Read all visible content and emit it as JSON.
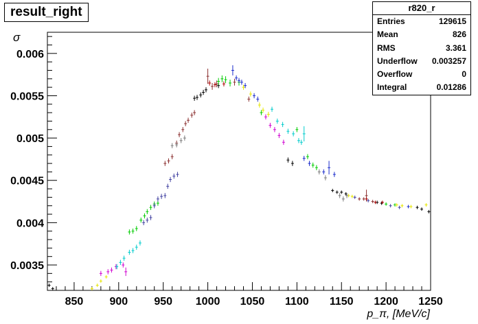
{
  "title": "result_right",
  "stats": {
    "name": "r820_r",
    "rows": [
      {
        "label": "Entries",
        "value": "129615"
      },
      {
        "label": "Mean",
        "value": "826"
      },
      {
        "label": "RMS",
        "value": "3.361"
      },
      {
        "label": "Underflow",
        "value": "0.003257"
      },
      {
        "label": "Overflow",
        "value": "0"
      },
      {
        "label": "Integral",
        "value": "0.01286"
      }
    ]
  },
  "chart_data": {
    "type": "scatter",
    "ylabel": "σ",
    "xlabel": "p_π, [MeV/c]",
    "xlim": [
      820,
      1250
    ],
    "ylim": [
      0.0032,
      0.00625
    ],
    "xticks": [
      "850",
      "900",
      "950",
      "1000",
      "1050",
      "1100",
      "1150",
      "1200",
      "1250"
    ],
    "yticks": [
      "0.0035",
      "0.004",
      "0.0045",
      "0.005",
      "0.0055",
      "0.006"
    ],
    "colors": {
      "black": "#000000",
      "brown": "#8b2f2f",
      "green": "#00cc00",
      "blue": "#1a2bcc",
      "yellow": "#e6e600",
      "magenta": "#d000d0",
      "cyan": "#00cccc",
      "gray": "#7a7a7a",
      "navy": "#4040a0",
      "red": "#aa0000"
    },
    "series": [
      {
        "color": "black",
        "points": [
          [
            822,
            0.00326
          ],
          [
            826,
            0.00322
          ],
          [
            985,
            0.00547
          ],
          [
            988,
            0.00548
          ],
          [
            992,
            0.00551
          ],
          [
            995,
            0.00554
          ],
          [
            998,
            0.00557
          ],
          [
            1012,
            0.00562
          ],
          [
            1090,
            0.00474
          ],
          [
            1095,
            0.0047
          ],
          [
            1140,
            0.00438
          ],
          [
            1145,
            0.00436
          ],
          [
            1150,
            0.00436
          ],
          [
            1155,
            0.00434
          ],
          [
            1190,
            0.00424
          ],
          [
            1195,
            0.00423
          ],
          [
            1235,
            0.00418
          ],
          [
            1240,
            0.00416
          ],
          [
            1248,
            0.00413
          ]
        ],
        "errs": [
          2e-05,
          2e-05,
          3e-05,
          3e-05,
          3e-05,
          3e-05,
          3e-05,
          3e-05,
          3e-05,
          3e-05,
          2e-05,
          2e-05,
          2e-05,
          2e-05,
          2e-05,
          2e-05,
          2e-05,
          2e-05,
          2e-05
        ]
      },
      {
        "color": "brown",
        "points": [
          [
            952,
            0.0047
          ],
          [
            956,
            0.00473
          ],
          [
            960,
            0.00478
          ],
          [
            965,
            0.00494
          ],
          [
            968,
            0.00504
          ],
          [
            972,
            0.0051
          ],
          [
            975,
            0.00517
          ],
          [
            978,
            0.00521
          ],
          [
            982,
            0.00527
          ],
          [
            985,
            0.0053
          ],
          [
            1000,
            0.00573
          ],
          [
            1005,
            0.00561
          ],
          [
            1010,
            0.00564
          ],
          [
            1030,
            0.00566
          ],
          [
            1046,
            0.00546
          ],
          [
            1170,
            0.00428
          ],
          [
            1175,
            0.00428
          ],
          [
            1178,
            0.00432
          ],
          [
            1185,
            0.00425
          ]
        ],
        "errs": [
          3e-05,
          3e-05,
          3e-05,
          3e-05,
          3e-05,
          3e-05,
          3e-05,
          3e-05,
          3e-05,
          3e-05,
          9e-05,
          4e-05,
          4e-05,
          4e-05,
          3e-05,
          2e-05,
          2e-05,
          7e-05,
          2e-05
        ]
      },
      {
        "color": "green",
        "points": [
          [
            912,
            0.00389
          ],
          [
            916,
            0.0039
          ],
          [
            920,
            0.00393
          ],
          [
            925,
            0.00403
          ],
          [
            929,
            0.00408
          ],
          [
            932,
            0.00413
          ],
          [
            936,
            0.00418
          ],
          [
            940,
            0.00422
          ],
          [
            944,
            0.00423
          ],
          [
            1012,
            0.00567
          ],
          [
            1016,
            0.0057
          ],
          [
            1020,
            0.00569
          ],
          [
            1025,
            0.00565
          ],
          [
            1035,
            0.00566
          ],
          [
            1060,
            0.0053
          ],
          [
            1100,
            0.0051
          ],
          [
            1112,
            0.00478
          ],
          [
            1118,
            0.00468
          ],
          [
            1122,
            0.00465
          ],
          [
            1200,
            0.00422
          ],
          [
            1210,
            0.00421
          ]
        ],
        "errs": [
          3e-05,
          3e-05,
          3e-05,
          3e-05,
          3e-05,
          3e-05,
          3e-05,
          3e-05,
          3e-05,
          4e-05,
          4e-05,
          4e-05,
          4e-05,
          4e-05,
          3e-05,
          3e-05,
          3e-05,
          3e-05,
          3e-05,
          2e-05,
          2e-05
        ]
      },
      {
        "color": "blue",
        "points": [
          [
            1028,
            0.0058
          ],
          [
            1032,
            0.00571
          ],
          [
            1035,
            0.00568
          ],
          [
            1038,
            0.00566
          ],
          [
            1042,
            0.00562
          ],
          [
            1052,
            0.0055
          ],
          [
            1056,
            0.00546
          ],
          [
            1108,
            0.00476
          ],
          [
            1114,
            0.0047
          ],
          [
            1130,
            0.0046
          ],
          [
            1136,
            0.00465
          ],
          [
            1142,
            0.00457
          ],
          [
            1225,
            0.00419
          ]
        ],
        "errs": [
          6e-05,
          3e-05,
          3e-05,
          3e-05,
          3e-05,
          3e-05,
          3e-05,
          3e-05,
          3e-05,
          3e-05,
          8e-05,
          3e-05,
          2e-05
        ]
      },
      {
        "color": "yellow",
        "points": [
          [
            870,
            0.00322
          ],
          [
            876,
            0.00326
          ],
          [
            880,
            0.00331
          ],
          [
            886,
            0.00336
          ],
          [
            1040,
            0.0056
          ],
          [
            1048,
            0.00552
          ],
          [
            1058,
            0.00539
          ],
          [
            1062,
            0.00533
          ],
          [
            1068,
            0.00528
          ],
          [
            1158,
            0.00432
          ],
          [
            1162,
            0.00431
          ],
          [
            1212,
            0.00421
          ],
          [
            1218,
            0.0042
          ],
          [
            1228,
            0.00419
          ],
          [
            1245,
            0.00421
          ]
        ],
        "errs": [
          2e-05,
          2e-05,
          2e-05,
          2e-05,
          3e-05,
          3e-05,
          3e-05,
          3e-05,
          3e-05,
          2e-05,
          2e-05,
          2e-05,
          2e-05,
          2e-05,
          2e-05
        ]
      },
      {
        "color": "magenta",
        "points": [
          [
            880,
            0.0034
          ],
          [
            888,
            0.00342
          ],
          [
            892,
            0.00344
          ],
          [
            897,
            0.00348
          ],
          [
            905,
            0.0035
          ],
          [
            908,
            0.00342
          ],
          [
            1065,
            0.00525
          ],
          [
            1070,
            0.00515
          ],
          [
            1075,
            0.0051
          ],
          [
            1080,
            0.00503
          ],
          [
            1085,
            0.00495
          ]
        ],
        "errs": [
          3e-05,
          3e-05,
          3e-05,
          3e-05,
          3e-05,
          5e-05,
          3e-05,
          3e-05,
          3e-05,
          3e-05,
          3e-05
        ]
      },
      {
        "color": "cyan",
        "points": [
          [
            898,
            0.00348
          ],
          [
            902,
            0.00353
          ],
          [
            906,
            0.00358
          ],
          [
            912,
            0.00365
          ],
          [
            916,
            0.00367
          ],
          [
            920,
            0.00371
          ],
          [
            924,
            0.00376
          ],
          [
            1072,
            0.00534
          ],
          [
            1078,
            0.0052
          ],
          [
            1084,
            0.00516
          ],
          [
            1090,
            0.00508
          ],
          [
            1096,
            0.00505
          ],
          [
            1102,
            0.00497
          ],
          [
            1105,
            0.00495
          ],
          [
            1108,
            0.00505
          ]
        ],
        "errs": [
          3e-05,
          3e-05,
          3e-05,
          3e-05,
          3e-05,
          3e-05,
          3e-05,
          3e-05,
          3e-05,
          3e-05,
          3e-05,
          3e-05,
          3e-05,
          3e-05,
          9e-05
        ]
      },
      {
        "color": "gray",
        "points": [
          [
            960,
            0.00491
          ],
          [
            965,
            0.00492
          ],
          [
            970,
            0.00497
          ],
          [
            974,
            0.005
          ],
          [
            1125,
            0.0046
          ],
          [
            1132,
            0.00453
          ],
          [
            1148,
            0.00432
          ],
          [
            1152,
            0.00428
          ],
          [
            1156,
            0.00432
          ]
        ],
        "errs": [
          3e-05,
          3e-05,
          3e-05,
          3e-05,
          3e-05,
          3e-05,
          3e-05,
          3e-05,
          3e-05
        ]
      },
      {
        "color": "navy",
        "points": [
          [
            928,
            0.004
          ],
          [
            932,
            0.00403
          ],
          [
            936,
            0.00406
          ],
          [
            940,
            0.0042
          ],
          [
            944,
            0.00428
          ],
          [
            948,
            0.00431
          ],
          [
            952,
            0.00432
          ],
          [
            955,
            0.00443
          ],
          [
            958,
            0.00451
          ],
          [
            962,
            0.00455
          ],
          [
            966,
            0.00457
          ],
          [
            1165,
            0.0043
          ],
          [
            1180,
            0.00426
          ],
          [
            1205,
            0.0042
          ],
          [
            1215,
            0.00418
          ]
        ],
        "errs": [
          3e-05,
          3e-05,
          3e-05,
          3e-05,
          3e-05,
          3e-05,
          3e-05,
          3e-05,
          3e-05,
          3e-05,
          3e-05,
          2e-05,
          2e-05,
          2e-05,
          2e-05
        ]
      },
      {
        "color": "red",
        "points": [
          [
            1002,
            0.00565
          ],
          [
            1008,
            0.00563
          ],
          [
            1018,
            0.00564
          ],
          [
            1178,
            0.00428
          ],
          [
            1188,
            0.00424
          ],
          [
            1196,
            0.00424
          ]
        ],
        "errs": [
          3e-05,
          3e-05,
          3e-05,
          2e-05,
          2e-05,
          2e-05
        ]
      }
    ]
  }
}
